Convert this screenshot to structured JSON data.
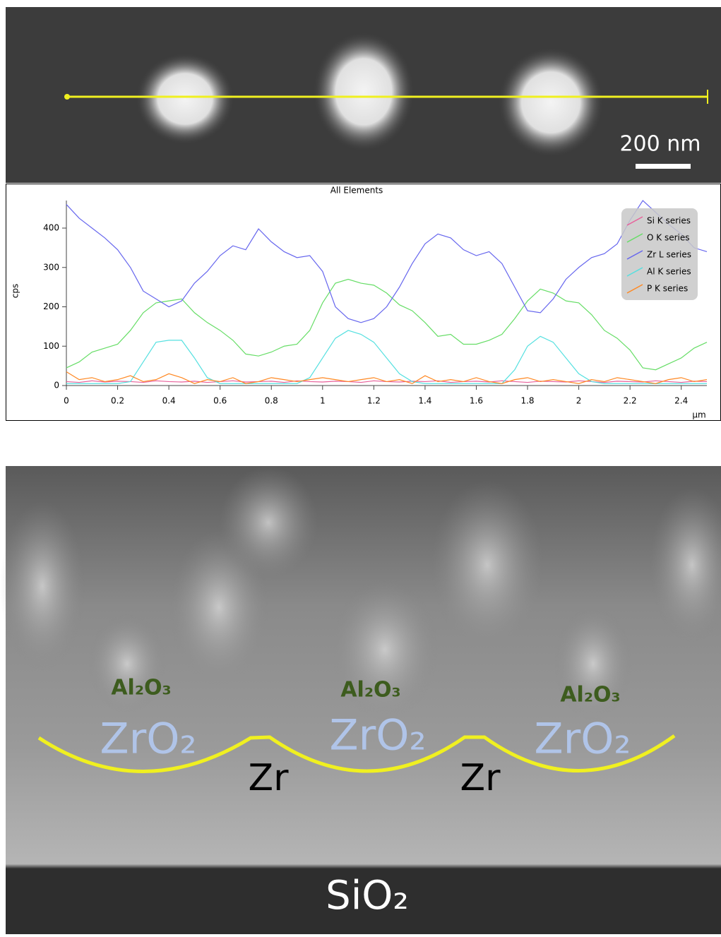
{
  "sem_top": {
    "scale_bar": "200 nm"
  },
  "chart_data": {
    "type": "line",
    "title": "All Elements",
    "x_label": "µm",
    "y_label": "cps",
    "x": [
      0,
      0.05,
      0.1,
      0.15,
      0.2,
      0.25,
      0.3,
      0.35,
      0.4,
      0.45,
      0.5,
      0.55,
      0.6,
      0.65,
      0.7,
      0.75,
      0.8,
      0.85,
      0.9,
      0.95,
      1.0,
      1.05,
      1.1,
      1.15,
      1.2,
      1.25,
      1.3,
      1.35,
      1.4,
      1.45,
      1.5,
      1.55,
      1.6,
      1.65,
      1.7,
      1.75,
      1.8,
      1.85,
      1.9,
      1.95,
      2.0,
      2.05,
      2.1,
      2.15,
      2.2,
      2.25,
      2.3,
      2.35,
      2.4,
      2.45,
      2.5
    ],
    "series": [
      {
        "name": "Si K series",
        "color": "#e8609a",
        "values": [
          10,
          8,
          12,
          9,
          11,
          10,
          8,
          12,
          10,
          9,
          11,
          8,
          10,
          12,
          9,
          10,
          11,
          8,
          12,
          10,
          9,
          11,
          10,
          8,
          12,
          10,
          9,
          11,
          10,
          12,
          8,
          10,
          11,
          9,
          12,
          10,
          8,
          11,
          10,
          9,
          12,
          10,
          8,
          11,
          10,
          9,
          12,
          10,
          8,
          11,
          10
        ]
      },
      {
        "name": "O K series",
        "color": "#66dd66",
        "values": [
          45,
          60,
          85,
          95,
          105,
          140,
          185,
          210,
          215,
          220,
          185,
          160,
          140,
          115,
          80,
          75,
          85,
          100,
          105,
          140,
          210,
          260,
          270,
          260,
          255,
          235,
          205,
          190,
          160,
          125,
          130,
          105,
          105,
          115,
          130,
          170,
          215,
          245,
          235,
          215,
          210,
          180,
          140,
          120,
          90,
          45,
          40,
          55,
          70,
          95,
          110
        ]
      },
      {
        "name": "Zr L series",
        "color": "#6666ee",
        "values": [
          460,
          425,
          400,
          375,
          345,
          300,
          240,
          220,
          200,
          215,
          260,
          290,
          330,
          355,
          345,
          398,
          365,
          340,
          325,
          330,
          290,
          200,
          170,
          160,
          170,
          200,
          250,
          310,
          360,
          385,
          375,
          345,
          330,
          340,
          310,
          250,
          190,
          185,
          220,
          270,
          300,
          325,
          335,
          360,
          420,
          470,
          440,
          410,
          385,
          350,
          340
        ]
      },
      {
        "name": "Al K series",
        "color": "#55e0e0",
        "values": [
          5,
          5,
          5,
          5,
          5,
          10,
          60,
          110,
          115,
          115,
          70,
          20,
          5,
          5,
          5,
          5,
          5,
          5,
          5,
          20,
          70,
          120,
          140,
          130,
          110,
          70,
          30,
          10,
          5,
          5,
          5,
          5,
          5,
          5,
          5,
          40,
          100,
          125,
          110,
          70,
          30,
          10,
          5,
          5,
          5,
          5,
          5,
          5,
          5,
          5,
          5
        ]
      },
      {
        "name": "P K series",
        "color": "#ff8822",
        "values": [
          35,
          15,
          20,
          10,
          15,
          25,
          10,
          15,
          30,
          20,
          5,
          15,
          10,
          20,
          5,
          10,
          20,
          15,
          10,
          15,
          20,
          15,
          10,
          15,
          20,
          10,
          15,
          5,
          25,
          10,
          15,
          10,
          20,
          10,
          5,
          15,
          20,
          10,
          15,
          10,
          5,
          15,
          10,
          20,
          15,
          10,
          5,
          15,
          20,
          10,
          15
        ]
      }
    ],
    "xlim": [
      0,
      2.5
    ],
    "ylim": [
      0,
      470
    ],
    "xticks": [
      0,
      0.2,
      0.4,
      0.6,
      0.8,
      1,
      1.2,
      1.4,
      1.6,
      1.8,
      2,
      2.2,
      2.4
    ],
    "yticks": [
      0,
      100,
      200,
      300,
      400
    ],
    "legend": "top-right"
  },
  "sem_bottom": {
    "oxide_top": [
      "Al₂O₃",
      "Al₂O₃",
      "Al₂O₃"
    ],
    "oxide": [
      "ZrO₂",
      "ZrO₂",
      "ZrO₂"
    ],
    "metal": [
      "Zr",
      "Zr"
    ],
    "substrate": "SiO₂"
  }
}
